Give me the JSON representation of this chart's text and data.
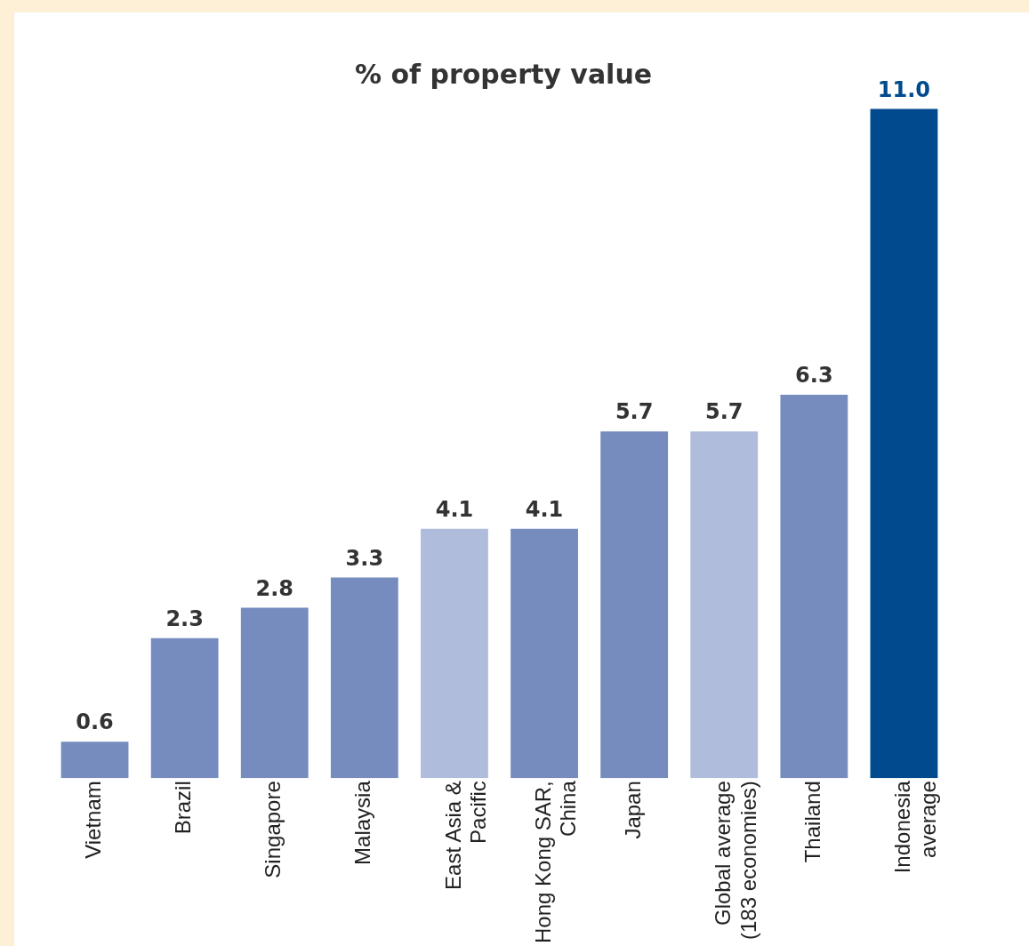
{
  "chart_data": {
    "type": "bar",
    "title": "% of property value",
    "categories": [
      "Vietnam",
      "Brazil",
      "Singapore",
      "Malaysia",
      "East Asia & Pacific",
      "Hong Kong SAR, China",
      "Japan",
      "Global average (183 economies)",
      "Thailand",
      "Indonesia average"
    ],
    "values": [
      0.6,
      2.3,
      2.8,
      3.3,
      4.1,
      4.1,
      5.7,
      5.7,
      6.3,
      11.0
    ],
    "value_labels": [
      "0.6",
      "2.3",
      "2.8",
      "3.3",
      "4.1",
      "4.1",
      "5.7",
      "5.7",
      "6.3",
      "11.0"
    ],
    "colors": [
      "#768cbf",
      "#768cbf",
      "#768cbf",
      "#768cbf",
      "#b0bcdb",
      "#768cbf",
      "#768cbf",
      "#b0bcdb",
      "#768cbf",
      "#004a8d"
    ],
    "grid": false,
    "legend": false
  }
}
